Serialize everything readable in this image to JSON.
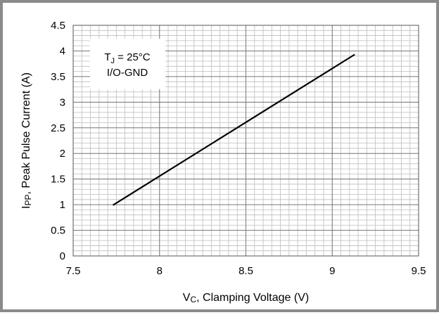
{
  "chart_data": {
    "type": "line",
    "xlabel_main": "V",
    "xlabel_sub": "C",
    "xlabel_rest": ", Clamping Voltage (V)",
    "ylabel_main": "I",
    "ylabel_sub": "PP",
    "ylabel_rest": ", Peak Pulse Current (A)",
    "xlim": [
      7.5,
      9.5
    ],
    "ylim": [
      0,
      4.5
    ],
    "x_ticks": [
      "7.5",
      "8",
      "8.5",
      "9",
      "9.5"
    ],
    "y_ticks": [
      "0",
      "0.5",
      "1",
      "1.5",
      "2",
      "2.5",
      "3",
      "3.5",
      "4",
      "4.5"
    ],
    "grid": true,
    "series": [
      {
        "x": [
          7.73,
          9.13
        ],
        "y": [
          0.99,
          3.93
        ]
      }
    ],
    "annotation": {
      "line1_main": "T",
      "line1_sub": "J",
      "line1_rest": " = 25°C",
      "line2": "I/O-GND"
    }
  }
}
